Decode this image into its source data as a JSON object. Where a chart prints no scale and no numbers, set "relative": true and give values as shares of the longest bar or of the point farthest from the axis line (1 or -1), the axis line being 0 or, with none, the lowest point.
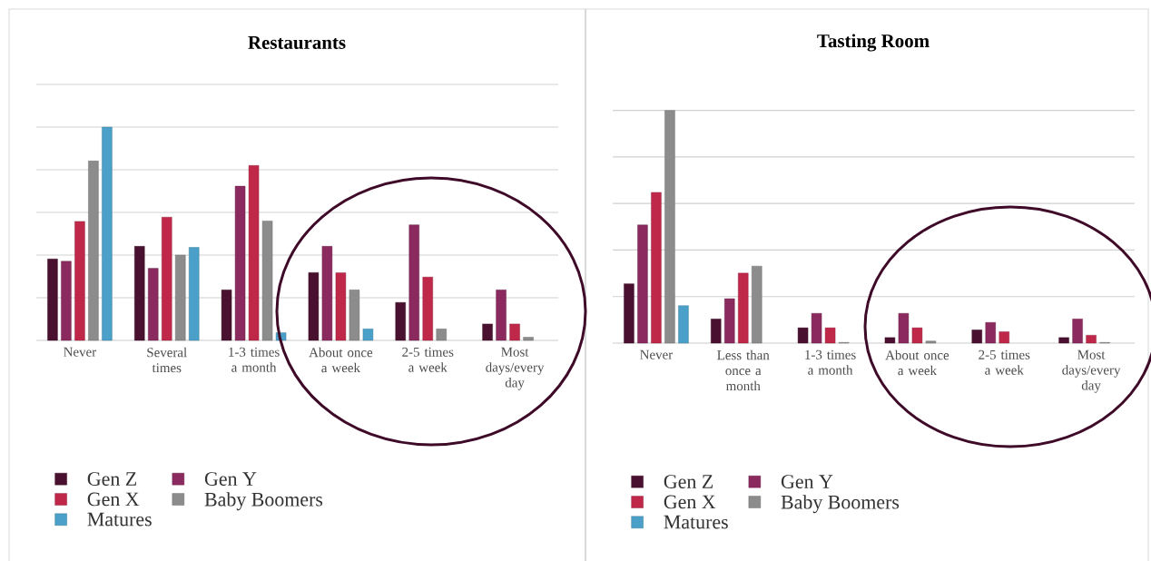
{
  "chart_data": [
    {
      "type": "bar",
      "title": "Restaurants",
      "relative": true,
      "grid": "y",
      "legend": "bottom",
      "categories": [
        "Never",
        "Several times",
        "1-3 times a month",
        "About once a week",
        "2-5 times a week",
        "Most days/every day"
      ],
      "series": [
        {
          "name": "Gen Z",
          "color": "#4a1030",
          "values": [
            0.382,
            0.441,
            0.237,
            0.318,
            0.178,
            0.077
          ]
        },
        {
          "name": "Gen Y",
          "color": "#8b2a5e",
          "values": [
            0.371,
            0.338,
            0.723,
            0.441,
            0.542,
            0.237
          ]
        },
        {
          "name": "Gen X",
          "color": "#c0284a",
          "values": [
            0.558,
            0.578,
            0.82,
            0.317,
            0.297,
            0.077
          ]
        },
        {
          "name": "Baby Boomers",
          "color": "#8c8c8c",
          "values": [
            0.841,
            0.4,
            0.56,
            0.237,
            0.054,
            0.015
          ]
        },
        {
          "name": "Matures",
          "color": "#4aa0c8",
          "values": [
            1.0,
            0.436,
            0.036,
            0.054,
            null,
            null
          ]
        }
      ]
    },
    {
      "type": "bar",
      "title": "Tasting Room",
      "relative": true,
      "grid": "y",
      "legend": "bottom",
      "categories": [
        "Never",
        "Less than once a month",
        "1-3 times a month",
        "About once a week",
        "2-5 times a week",
        "Most days/every day"
      ],
      "series": [
        {
          "name": "Gen Z",
          "color": "#4a1030",
          "values": [
            0.255,
            0.104,
            0.066,
            0.024,
            0.057,
            0.024
          ]
        },
        {
          "name": "Gen Y",
          "color": "#8b2a5e",
          "values": [
            0.508,
            0.191,
            0.128,
            0.128,
            0.089,
            0.104
          ]
        },
        {
          "name": "Gen X",
          "color": "#c0284a",
          "values": [
            0.648,
            0.301,
            0.066,
            0.066,
            0.049,
            0.034
          ]
        },
        {
          "name": "Baby Boomers",
          "color": "#8c8c8c",
          "values": [
            1.0,
            0.331,
            0.003,
            0.009,
            null,
            0.003
          ]
        },
        {
          "name": "Matures",
          "color": "#4aa0c8",
          "values": [
            0.161,
            null,
            null,
            null,
            null,
            null
          ]
        }
      ]
    }
  ]
}
